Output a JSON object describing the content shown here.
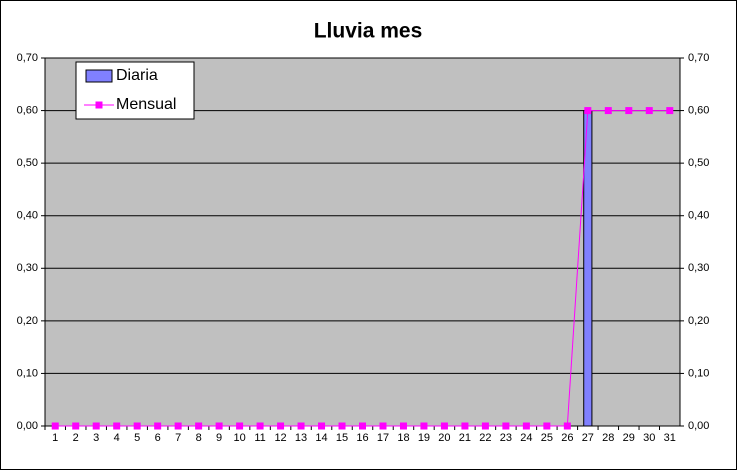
{
  "chart_data": {
    "type": "bar-line",
    "title": "Lluvia mes",
    "categories": [
      1,
      2,
      3,
      4,
      5,
      6,
      7,
      8,
      9,
      10,
      11,
      12,
      13,
      14,
      15,
      16,
      17,
      18,
      19,
      20,
      21,
      22,
      23,
      24,
      25,
      26,
      27,
      28,
      29,
      30,
      31
    ],
    "series": [
      {
        "name": "Diaria",
        "type": "bar",
        "color": "#8080ff",
        "values": [
          0,
          0,
          0,
          0,
          0,
          0,
          0,
          0,
          0,
          0,
          0,
          0,
          0,
          0,
          0,
          0,
          0,
          0,
          0,
          0,
          0,
          0,
          0,
          0,
          0,
          0,
          0.6,
          0,
          0,
          0,
          0
        ]
      },
      {
        "name": "Mensual",
        "type": "line",
        "axis": "y2",
        "color": "#ff00ff",
        "values": [
          0,
          0,
          0,
          0,
          0,
          0,
          0,
          0,
          0,
          0,
          0,
          0,
          0,
          0,
          0,
          0,
          0,
          0,
          0,
          0,
          0,
          0,
          0,
          0,
          0,
          0,
          0.6,
          0.6,
          0.6,
          0.6,
          0.6
        ]
      }
    ],
    "ylim": [
      0,
      0.7
    ],
    "yticks": [
      {
        "value": 0,
        "label": "0,00"
      },
      {
        "value": 0.1,
        "label": "0,10"
      },
      {
        "value": 0.2,
        "label": "0,20"
      },
      {
        "value": 0.3,
        "label": "0,30"
      },
      {
        "value": 0.4,
        "label": "0,40"
      },
      {
        "value": 0.5,
        "label": "0,50"
      },
      {
        "value": 0.6,
        "label": "0,60"
      },
      {
        "value": 0.7,
        "label": "0,70"
      }
    ],
    "y2lim": [
      0,
      0.7
    ],
    "y2ticks": [
      {
        "value": 0,
        "label": "0,00"
      },
      {
        "value": 0.1,
        "label": "0,10"
      },
      {
        "value": 0.2,
        "label": "0,20"
      },
      {
        "value": 0.3,
        "label": "0,30"
      },
      {
        "value": 0.4,
        "label": "0,40"
      },
      {
        "value": 0.5,
        "label": "0,50"
      },
      {
        "value": 0.6,
        "label": "0,60"
      },
      {
        "value": 0.7,
        "label": "0,70"
      }
    ],
    "grid": true,
    "legend": "top-left"
  }
}
